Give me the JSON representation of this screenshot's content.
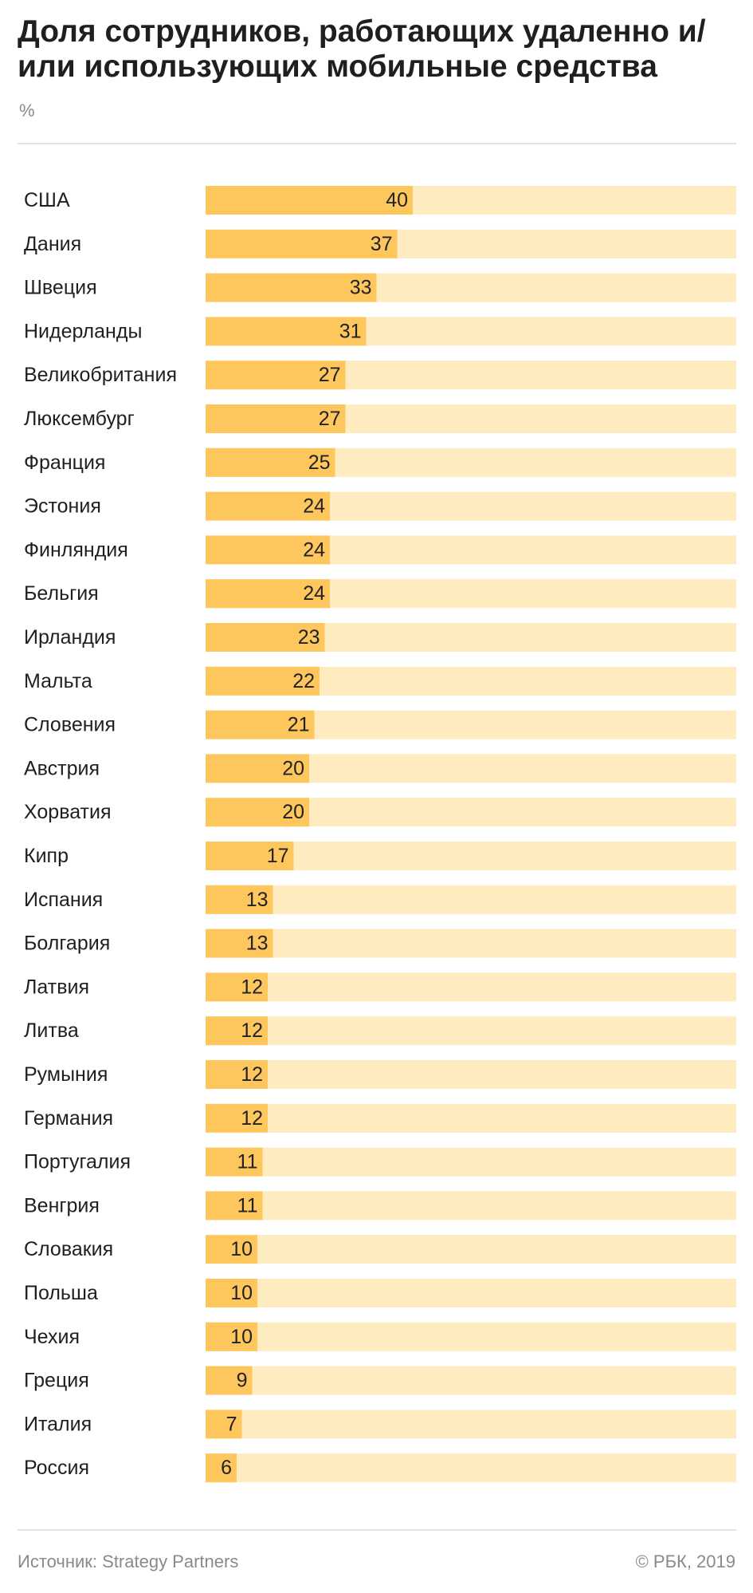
{
  "chart_data": {
    "type": "bar",
    "orientation": "horizontal",
    "title": "Доля сотрудников, работающих удаленно и/или использующих мобильные средства",
    "unit": "%",
    "categories": [
      "США",
      "Дания",
      "Швеция",
      "Нидерланды",
      "Великобритания",
      "Люксембург",
      "Франция",
      "Эстония",
      "Финляндия",
      "Бельгия",
      "Ирландия",
      "Мальта",
      "Словения",
      "Австрия",
      "Хорватия",
      "Кипр",
      "Испания",
      "Болгария",
      "Латвия",
      "Литва",
      "Румыния",
      "Германия",
      "Португалия",
      "Венгрия",
      "Словакия",
      "Польша",
      "Чехия",
      "Греция",
      "Италия",
      "Россия"
    ],
    "values": [
      40,
      37,
      33,
      31,
      27,
      27,
      25,
      24,
      24,
      24,
      23,
      22,
      21,
      20,
      20,
      17,
      13,
      13,
      12,
      12,
      12,
      12,
      11,
      11,
      10,
      10,
      10,
      9,
      7,
      6
    ],
    "xlim": [
      0,
      100
    ],
    "grid": false,
    "legend": "none",
    "data_labels": "inside-end",
    "colors": {
      "bar": "#fdc75e",
      "track": "#feebc0",
      "text": "#222222"
    }
  },
  "footer": {
    "source": "Источник: Strategy Partners",
    "credit": "© РБК, 2019"
  }
}
